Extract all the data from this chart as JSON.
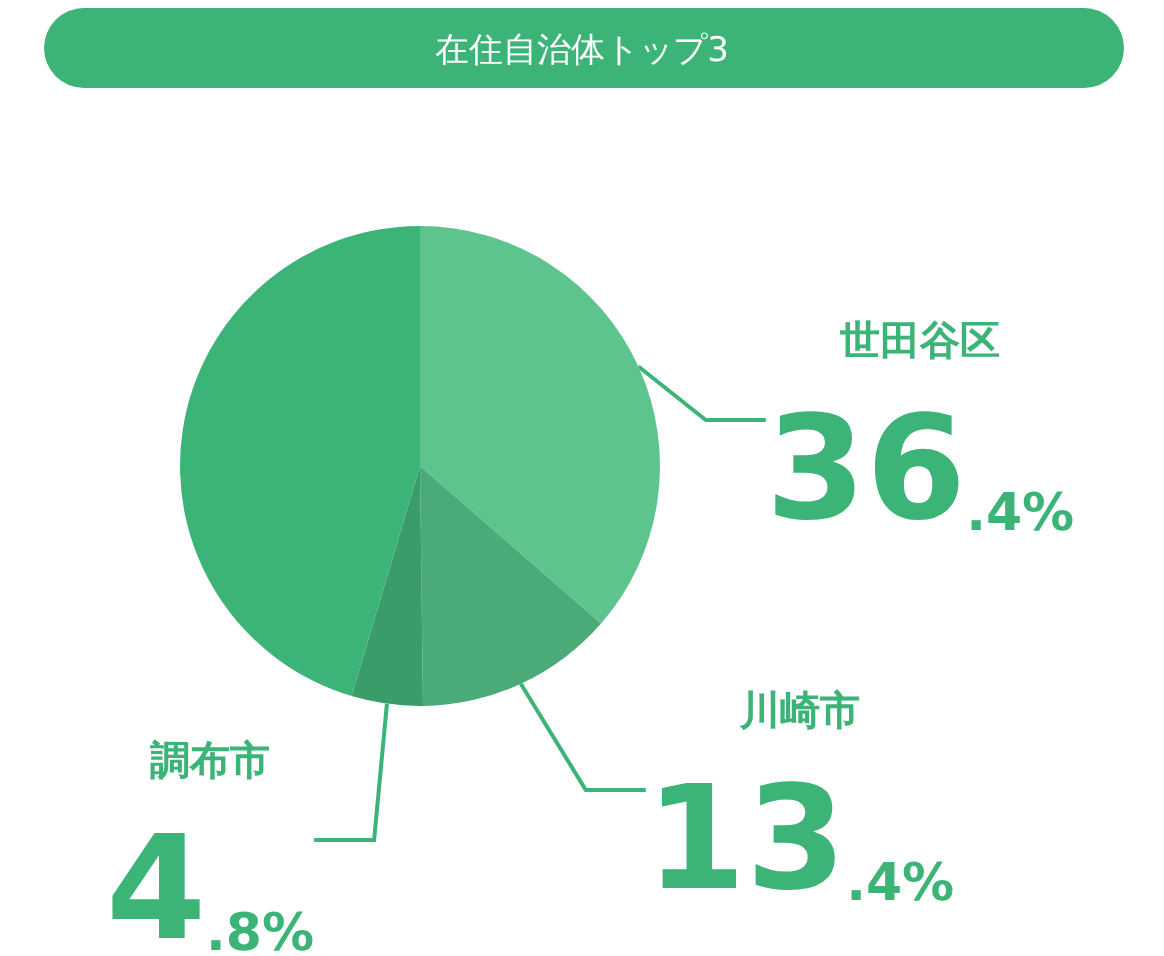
{
  "chart_data": {
    "type": "pie",
    "title": "在住自治体トップ3",
    "categories": [
      "世田谷区",
      "川崎市",
      "調布市",
      null
    ],
    "values": [
      36.4,
      13.4,
      4.8,
      45.4
    ],
    "colors": [
      "#5ec48e",
      "#4aaa78",
      "#3a9c68",
      "#3db477"
    ],
    "value_labels": [
      "36.4%",
      "13.4%",
      "4.8%",
      null
    ],
    "legend": false
  }
}
